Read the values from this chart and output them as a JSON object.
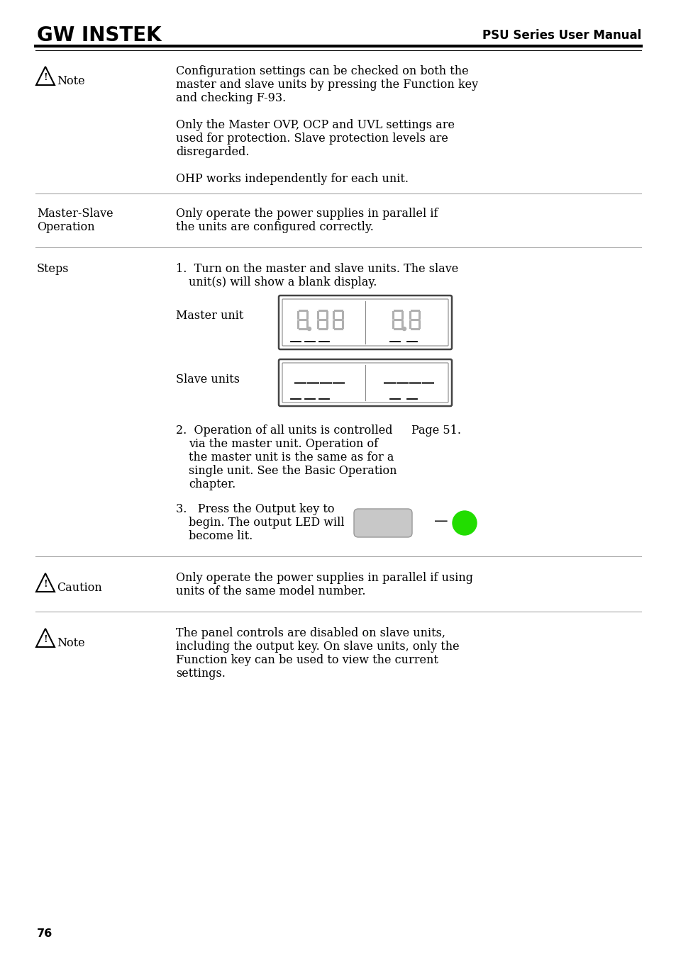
{
  "page_num": "76",
  "header_right": "PSU Series User Manual",
  "bg_color": "#ffffff",
  "line_color": "#aaaaaa",
  "led_color": "#22dd00",
  "note1_lines": [
    "Configuration settings can be checked on both the",
    "master and slave units by pressing the Function key",
    "and checking F-93.",
    "",
    "Only the Master OVP, OCP and UVL settings are",
    "used for protection. Slave protection levels are",
    "disregarded.",
    "",
    "OHP works independently for each unit."
  ],
  "step2_rest": [
    "via the master unit. Operation of",
    "the master unit is the same as for a",
    "single unit. See the Basic Operation",
    "chapter."
  ],
  "note2_lines": [
    "The panel controls are disabled on slave units,",
    "including the output key. On slave units, only the",
    "Function key can be used to view the current",
    "settings."
  ]
}
